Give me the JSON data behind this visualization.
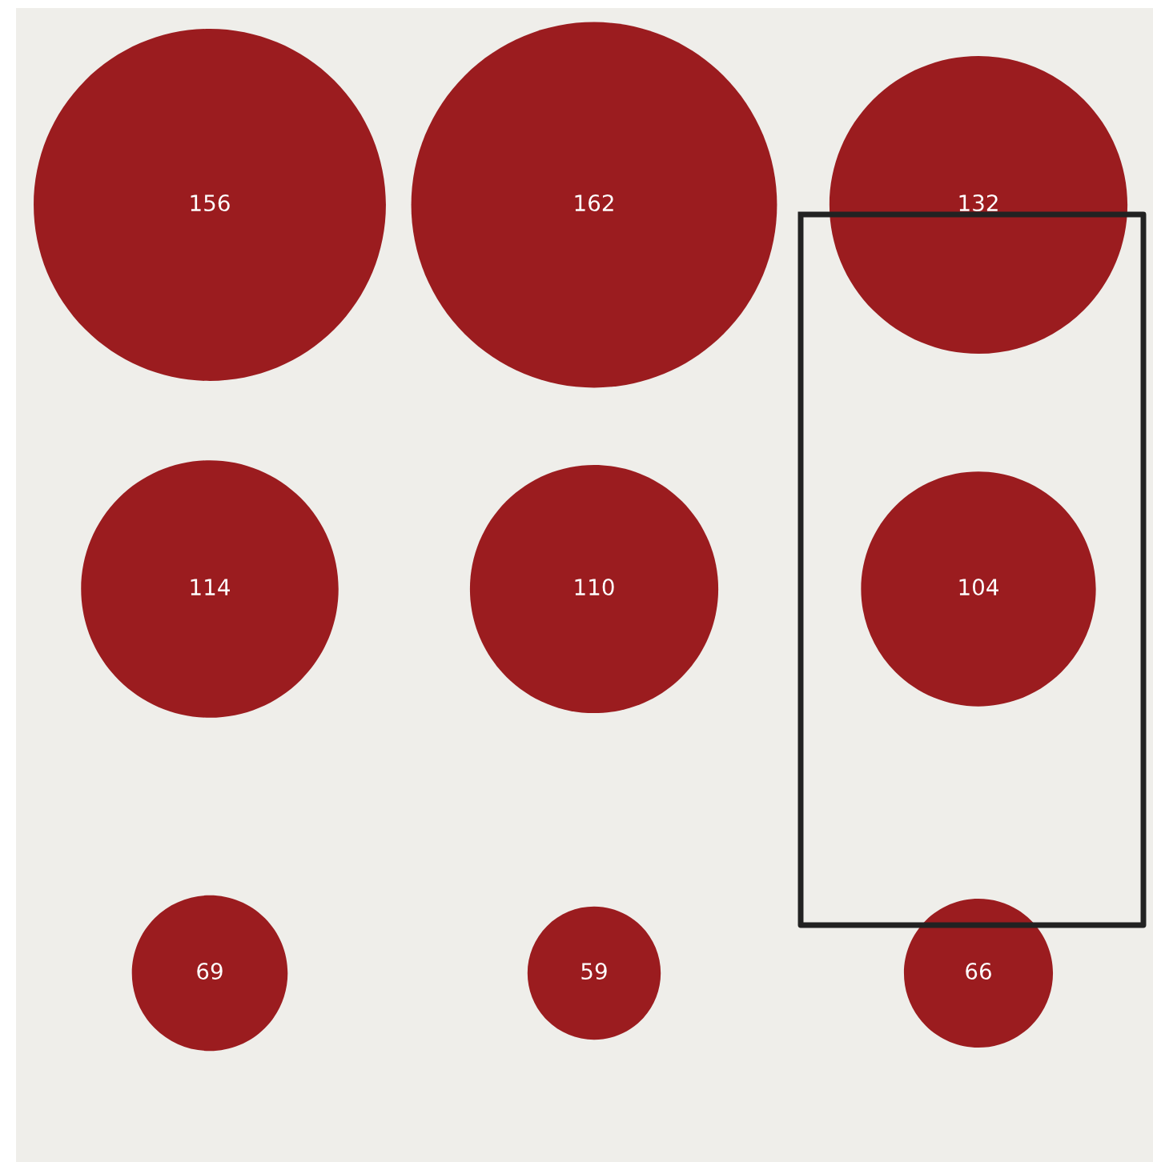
{
  "chart_data": {
    "type": "other",
    "values": [
      156,
      162,
      132,
      114,
      110,
      104,
      69,
      59,
      66
    ],
    "color": "#9b1c1f",
    "data_labels": true
  }
}
